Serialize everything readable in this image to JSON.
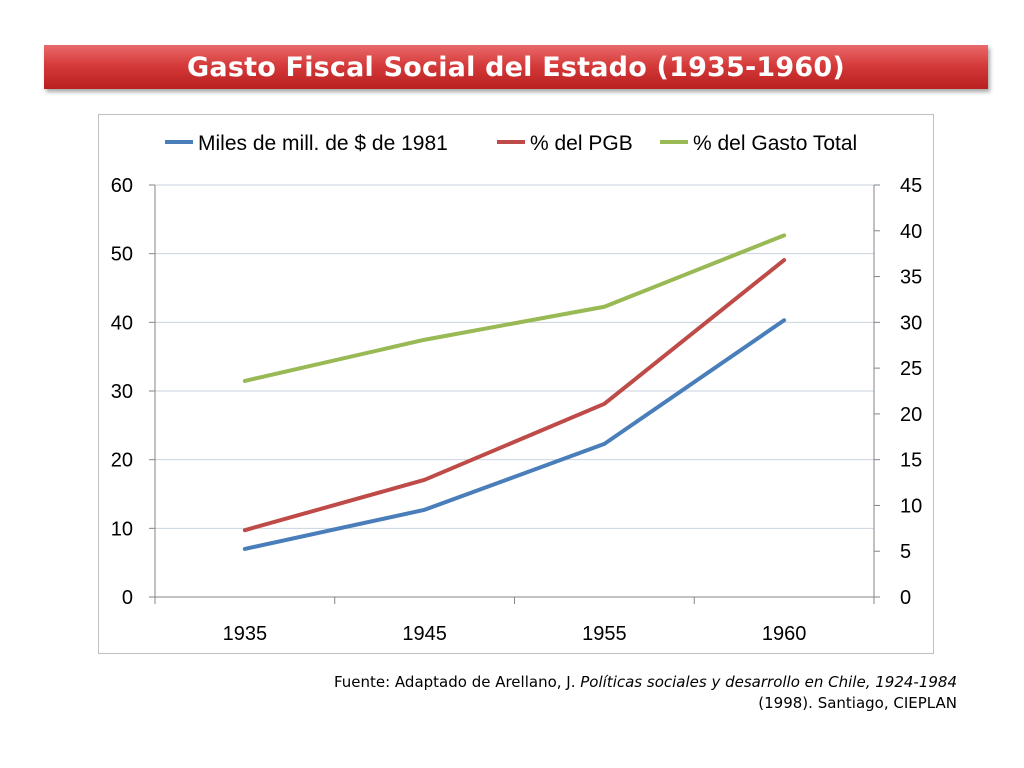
{
  "slide": {
    "title": "Gasto Fiscal Social del Estado (1935-1960)"
  },
  "source": {
    "prefix": "Fuente: Adaptado de Arellano, J. ",
    "italic": "Políticas sociales y desarrollo en Chile, 1924-1984",
    "suffix": "(1998). Santiago, CIEPLAN"
  },
  "chart_data": {
    "type": "line",
    "categories": [
      "1935",
      "1945",
      "1955",
      "1960"
    ],
    "y_left": {
      "min": 0,
      "max": 60,
      "ticks": [
        "0",
        "10",
        "20",
        "30",
        "40",
        "50",
        "60"
      ]
    },
    "y_right": {
      "min": 0,
      "max": 45,
      "ticks": [
        "0",
        "5",
        "10",
        "15",
        "20",
        "25",
        "30",
        "35",
        "40",
        "45"
      ]
    },
    "grid": true,
    "legend_position": "top",
    "series": [
      {
        "name": "Miles de mill. de $ de 1981",
        "axis": "left",
        "color": "#4a7ebb",
        "values": [
          7.0,
          12.7,
          22.3,
          40.3
        ]
      },
      {
        "name": "% del PGB",
        "axis": "right",
        "color": "#be4b48",
        "values": [
          7.3,
          12.8,
          21.1,
          36.8
        ]
      },
      {
        "name": "% del Gasto Total",
        "axis": "right",
        "color": "#98b954",
        "values": [
          23.6,
          28.1,
          31.7,
          39.5
        ]
      }
    ]
  }
}
